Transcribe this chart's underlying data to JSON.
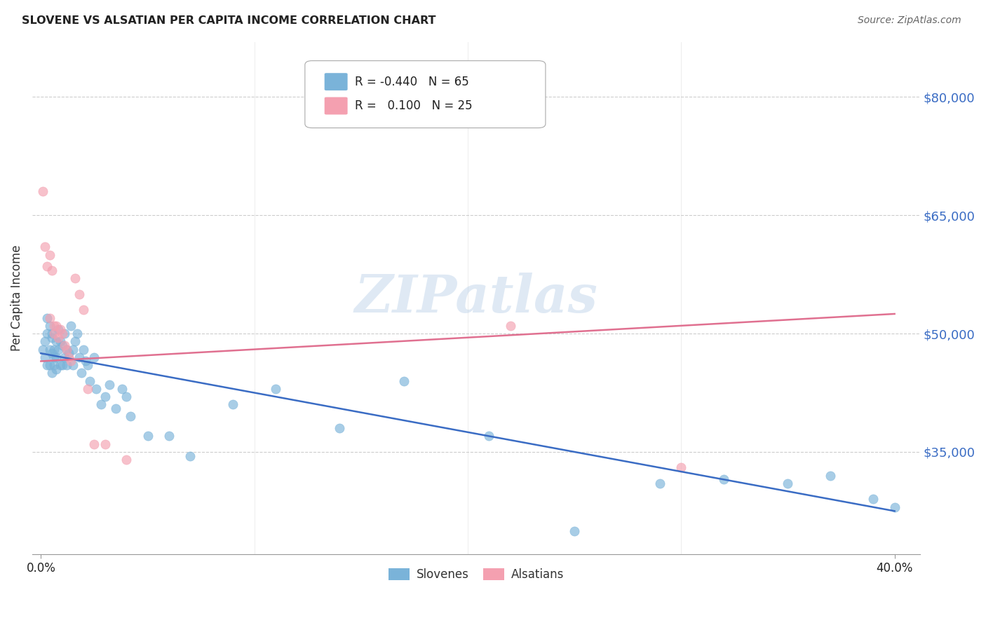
{
  "title": "SLOVENE VS ALSATIAN PER CAPITA INCOME CORRELATION CHART",
  "source": "Source: ZipAtlas.com",
  "ylabel": "Per Capita Income",
  "watermark": "ZIPatlas",
  "yticks": [
    80000,
    65000,
    50000,
    35000
  ],
  "ytick_labels": [
    "$80,000",
    "$65,000",
    "$50,000",
    "$35,000"
  ],
  "leg1_text": "R = -0.440   N = 65",
  "leg2_text": "R =   0.100   N = 25",
  "leg_bottom1": "Slovenes",
  "leg_bottom2": "Alsatians",
  "slovene_x": [
    0.001,
    0.002,
    0.002,
    0.003,
    0.003,
    0.003,
    0.004,
    0.004,
    0.004,
    0.005,
    0.005,
    0.005,
    0.005,
    0.006,
    0.006,
    0.006,
    0.007,
    0.007,
    0.007,
    0.008,
    0.008,
    0.009,
    0.009,
    0.01,
    0.01,
    0.011,
    0.011,
    0.012,
    0.012,
    0.013,
    0.014,
    0.015,
    0.015,
    0.016,
    0.017,
    0.018,
    0.019,
    0.02,
    0.021,
    0.022,
    0.023,
    0.025,
    0.026,
    0.028,
    0.03,
    0.032,
    0.035,
    0.038,
    0.04,
    0.042,
    0.05,
    0.06,
    0.07,
    0.09,
    0.11,
    0.14,
    0.17,
    0.21,
    0.25,
    0.29,
    0.32,
    0.35,
    0.37,
    0.39,
    0.4
  ],
  "slovene_y": [
    48000,
    49000,
    47000,
    50000,
    52000,
    46000,
    51000,
    48000,
    46000,
    49500,
    47500,
    50000,
    45000,
    48000,
    47000,
    46000,
    49000,
    47000,
    45500,
    50500,
    48000,
    49000,
    46000,
    48500,
    46000,
    47000,
    50000,
    48000,
    46000,
    47500,
    51000,
    48000,
    46000,
    49000,
    50000,
    47000,
    45000,
    48000,
    46500,
    46000,
    44000,
    47000,
    43000,
    41000,
    42000,
    43500,
    40500,
    43000,
    42000,
    39500,
    37000,
    37000,
    34500,
    41000,
    43000,
    38000,
    44000,
    37000,
    25000,
    31000,
    31500,
    31000,
    32000,
    29000,
    28000
  ],
  "alsatian_x": [
    0.001,
    0.002,
    0.003,
    0.004,
    0.004,
    0.005,
    0.006,
    0.006,
    0.007,
    0.008,
    0.009,
    0.01,
    0.011,
    0.012,
    0.013,
    0.014,
    0.016,
    0.018,
    0.02,
    0.022,
    0.025,
    0.03,
    0.04,
    0.22,
    0.3
  ],
  "alsatian_y": [
    68000,
    61000,
    58500,
    52000,
    60000,
    58000,
    51000,
    50000,
    51000,
    49500,
    50500,
    50000,
    48500,
    48000,
    47000,
    46500,
    57000,
    55000,
    53000,
    43000,
    36000,
    36000,
    34000,
    51000,
    33000
  ],
  "slovene_color": "#7ab3d9",
  "alsatian_color": "#f4a0b0",
  "slovene_line_color": "#3a6cc4",
  "alsatian_line_color": "#e07090",
  "background_color": "#ffffff",
  "grid_color": "#cccccc",
  "title_color": "#222222",
  "source_color": "#666666",
  "ytick_color": "#3a6cc4",
  "xtick_color": "#222222",
  "ylabel_color": "#333333",
  "ylim": [
    22000,
    87000
  ],
  "xlim": [
    -0.004,
    0.412
  ],
  "slovene_line_x0": 0.0,
  "slovene_line_x1": 0.4,
  "slovene_line_y0": 47500,
  "slovene_line_y1": 27500,
  "alsatian_line_x0": 0.0,
  "alsatian_line_x1": 0.4,
  "alsatian_line_y0": 46500,
  "alsatian_line_y1": 52500
}
